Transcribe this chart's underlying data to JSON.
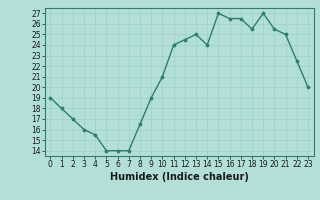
{
  "x": [
    0,
    1,
    2,
    3,
    4,
    5,
    6,
    7,
    8,
    9,
    10,
    11,
    12,
    13,
    14,
    15,
    16,
    17,
    18,
    19,
    20,
    21,
    22,
    23
  ],
  "y": [
    19,
    18,
    17,
    16,
    15.5,
    14,
    14,
    14,
    16.5,
    19,
    21,
    24,
    24.5,
    25,
    24,
    27,
    26.5,
    26.5,
    25.5,
    27,
    25.5,
    25,
    22.5,
    20
  ],
  "line_color": "#2e7d6e",
  "marker_color": "#2e7d6e",
  "bg_color": "#b2e0d8",
  "grid_color": "#9ecfc7",
  "xlabel": "Humidex (Indice chaleur)",
  "xlim": [
    -0.5,
    23.5
  ],
  "ylim": [
    13.5,
    27.5
  ],
  "yticks": [
    14,
    15,
    16,
    17,
    18,
    19,
    20,
    21,
    22,
    23,
    24,
    25,
    26,
    27
  ],
  "xticks": [
    0,
    1,
    2,
    3,
    4,
    5,
    6,
    7,
    8,
    9,
    10,
    11,
    12,
    13,
    14,
    15,
    16,
    17,
    18,
    19,
    20,
    21,
    22,
    23
  ],
  "tick_fontsize": 5.5,
  "label_fontsize": 7,
  "linewidth": 1.0,
  "markersize": 2.2
}
